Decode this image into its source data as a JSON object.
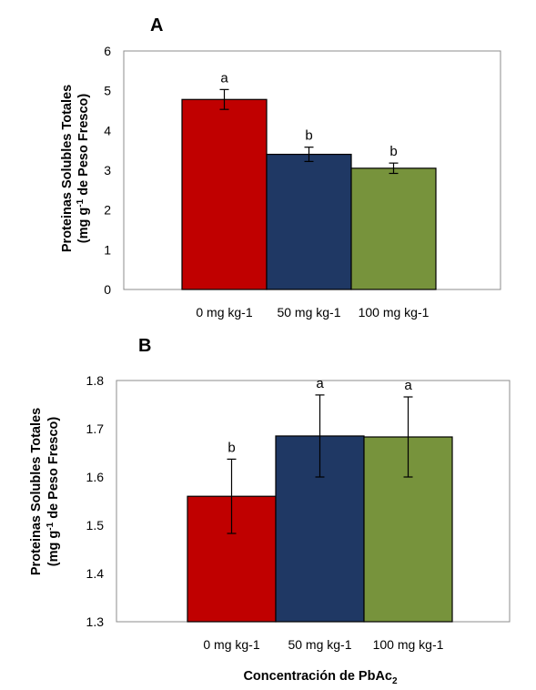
{
  "chart_data": [
    {
      "panel": "A",
      "type": "bar",
      "categories": [
        "0 mg kg-1",
        "50 mg kg-1",
        "100 mg kg-1"
      ],
      "values": [
        4.78,
        3.4,
        3.05
      ],
      "errors": [
        0.25,
        0.18,
        0.13
      ],
      "significance": [
        "a",
        "b",
        "b"
      ],
      "colors": [
        "#c00000",
        "#1f3864",
        "#77933c"
      ],
      "ylabel_line1": "Proteinas Solubles Totales",
      "ylabel_line2_pre": "(mg g",
      "ylabel_line2_sup": "-1",
      "ylabel_line2_post": " de Peso Fresco)",
      "ylim": [
        0,
        6
      ],
      "yticks": [
        "0",
        "1",
        "2",
        "3",
        "4",
        "5",
        "6"
      ]
    },
    {
      "panel": "B",
      "type": "bar",
      "categories": [
        "0 mg kg-1",
        "50 mg kg-1",
        "100 mg kg-1"
      ],
      "values": [
        1.56,
        1.685,
        1.683
      ],
      "errors": [
        0.077,
        0.085,
        0.083
      ],
      "significance": [
        "b",
        "a",
        "a"
      ],
      "colors": [
        "#c00000",
        "#1f3864",
        "#77933c"
      ],
      "ylabel_line1": "Proteinas Solubles Totales",
      "ylabel_line2_pre": "(mg g",
      "ylabel_line2_sup": "-1",
      "ylabel_line2_post": " de Peso Fresco)",
      "ylim": [
        1.3,
        1.8
      ],
      "yticks": [
        "1.3",
        "1.4",
        "1.5",
        "1.6",
        "1.7",
        "1.8"
      ],
      "xlabel_pre": "Concentración de PbAc",
      "xlabel_sub": "2"
    }
  ]
}
